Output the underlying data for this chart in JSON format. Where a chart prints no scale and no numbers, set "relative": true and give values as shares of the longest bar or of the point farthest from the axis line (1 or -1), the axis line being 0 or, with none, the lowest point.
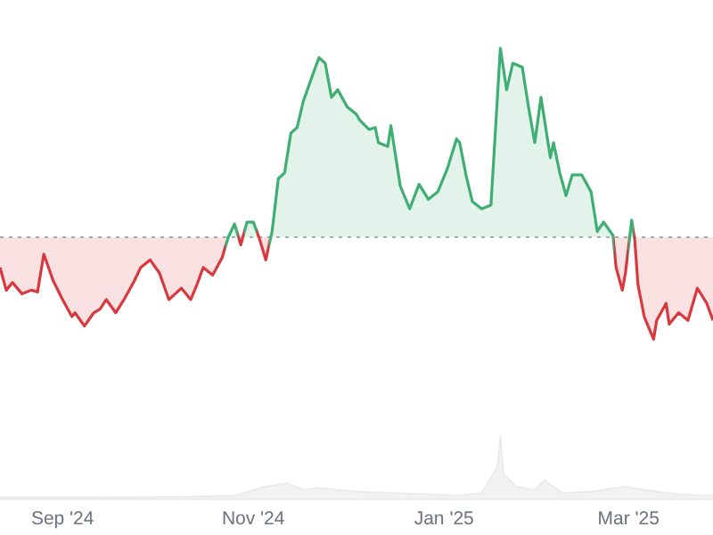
{
  "chart_data": [
    {
      "type": "area",
      "relative": true,
      "xlim": [
        "2024-08-12",
        "2025-03-28"
      ],
      "x": [
        "2024-08-12",
        "2024-08-14",
        "2024-08-16",
        "2024-08-19",
        "2024-08-22",
        "2024-08-24",
        "2024-08-26",
        "2024-08-29",
        "2024-09-01",
        "2024-09-04",
        "2024-09-05",
        "2024-09-08",
        "2024-09-11",
        "2024-09-13",
        "2024-09-15",
        "2024-09-18",
        "2024-09-21",
        "2024-09-24",
        "2024-09-26",
        "2024-09-29",
        "2024-10-02",
        "2024-10-05",
        "2024-10-07",
        "2024-10-09",
        "2024-10-12",
        "2024-10-14",
        "2024-10-16",
        "2024-10-19",
        "2024-10-22",
        "2024-10-24",
        "2024-10-26",
        "2024-10-28",
        "2024-10-30",
        "2024-11-01",
        "2024-11-03",
        "2024-11-05",
        "2024-11-07",
        "2024-11-09",
        "2024-11-11",
        "2024-11-13",
        "2024-11-15",
        "2024-11-17",
        "2024-11-20",
        "2024-11-22",
        "2024-11-24",
        "2024-11-26",
        "2024-11-28",
        "2024-12-01",
        "2024-12-04",
        "2024-12-05",
        "2024-12-08",
        "2024-12-10",
        "2024-12-11",
        "2024-12-14",
        "2024-12-15",
        "2024-12-18",
        "2024-12-21",
        "2024-12-24",
        "2024-12-27",
        "2024-12-30",
        "2025-01-02",
        "2025-01-05",
        "2025-01-06",
        "2025-01-08",
        "2025-01-10",
        "2025-01-13",
        "2025-01-16",
        "2025-01-19",
        "2025-01-21",
        "2025-01-23",
        "2025-01-26",
        "2025-01-28",
        "2025-01-30",
        "2025-02-01",
        "2025-02-04",
        "2025-02-05",
        "2025-02-07",
        "2025-02-09",
        "2025-02-11",
        "2025-02-14",
        "2025-02-17",
        "2025-02-19",
        "2025-02-21",
        "2025-02-24",
        "2025-02-25",
        "2025-02-27",
        "2025-02-28",
        "2025-03-02",
        "2025-03-03",
        "2025-03-04",
        "2025-03-06",
        "2025-03-09",
        "2025-03-10",
        "2025-03-13",
        "2025-03-14",
        "2025-03-17",
        "2025-03-20",
        "2025-03-23",
        "2025-03-26",
        "2025-03-28"
      ],
      "values": [
        -0.16,
        -0.28,
        -0.24,
        -0.3,
        -0.28,
        -0.29,
        -0.09,
        -0.23,
        -0.33,
        -0.42,
        -0.4,
        -0.47,
        -0.4,
        -0.38,
        -0.33,
        -0.4,
        -0.32,
        -0.23,
        -0.16,
        -0.12,
        -0.19,
        -0.33,
        -0.3,
        -0.27,
        -0.33,
        -0.25,
        -0.16,
        -0.2,
        -0.11,
        0,
        0.07,
        -0.04,
        0.08,
        0.08,
        -0.01,
        -0.12,
        0.03,
        0.31,
        0.34,
        0.55,
        0.58,
        0.72,
        0.86,
        0.95,
        0.92,
        0.74,
        0.78,
        0.69,
        0.65,
        0.62,
        0.57,
        0.58,
        0.5,
        0.48,
        0.59,
        0.27,
        0.15,
        0.28,
        0.2,
        0.24,
        0.36,
        0.52,
        0.5,
        0.33,
        0.19,
        0.15,
        0.17,
        1,
        0.78,
        0.92,
        0.9,
        0.69,
        0.5,
        0.74,
        0.42,
        0.5,
        0.34,
        0.22,
        0.33,
        0.33,
        0.24,
        0.03,
        0.08,
        0.01,
        -0.16,
        -0.28,
        -0.19,
        0.09,
        -0.02,
        -0.25,
        -0.42,
        -0.54,
        -0.44,
        -0.35,
        -0.46,
        -0.4,
        -0.44,
        -0.27,
        -0.35,
        -0.44
      ],
      "colors": [
        "#d8393f",
        "#d8393f",
        "#d8393f",
        "#d8393f",
        "#d8393f",
        "#d8393f",
        "#d8393f",
        "#d8393f",
        "#d8393f",
        "#d8393f",
        "#d8393f",
        "#d8393f",
        "#d8393f",
        "#d8393f",
        "#d8393f",
        "#d8393f",
        "#d8393f",
        "#d8393f",
        "#d8393f",
        "#d8393f",
        "#d8393f",
        "#d8393f",
        "#d8393f",
        "#d8393f",
        "#d8393f",
        "#d8393f",
        "#d8393f",
        "#d8393f",
        "#d8393f",
        "#3fae74",
        "#3fae74",
        "#d8393f",
        "#3fae74",
        "#3fae74",
        "#d8393f",
        "#d8393f",
        "#3fae74",
        "#3fae74",
        "#3fae74",
        "#3fae74",
        "#3fae74",
        "#3fae74",
        "#3fae74",
        "#3fae74",
        "#3fae74",
        "#3fae74",
        "#3fae74",
        "#3fae74",
        "#3fae74",
        "#3fae74",
        "#3fae74",
        "#3fae74",
        "#3fae74",
        "#3fae74",
        "#3fae74",
        "#3fae74",
        "#3fae74",
        "#3fae74",
        "#3fae74",
        "#3fae74",
        "#3fae74",
        "#3fae74",
        "#3fae74",
        "#3fae74",
        "#3fae74",
        "#3fae74",
        "#3fae74",
        "#3fae74",
        "#3fae74",
        "#3fae74",
        "#3fae74",
        "#3fae74",
        "#3fae74",
        "#3fae74",
        "#3fae74",
        "#3fae74",
        "#3fae74",
        "#3fae74",
        "#3fae74",
        "#3fae74",
        "#3fae74",
        "#3fae74",
        "#3fae74",
        "#3fae74",
        "#d8393f",
        "#d8393f",
        "#d8393f",
        "#3fae74",
        "#d8393f",
        "#d8393f",
        "#d8393f",
        "#d8393f",
        "#d8393f",
        "#d8393f",
        "#d8393f",
        "#d8393f",
        "#d8393f",
        "#d8393f",
        "#d8393f",
        "#d8393f"
      ],
      "ref_lines": [
        {
          "axis": "y",
          "value": 0,
          "color": "#b0b0b0",
          "line_style": "dotted"
        }
      ]
    },
    {
      "type": "area",
      "relative": true,
      "xlim": [
        "2024-08-12",
        "2025-03-28"
      ],
      "xticks": [
        {
          "value": "2024-09-01",
          "label": "Sep '24"
        },
        {
          "value": "2024-11-01",
          "label": "Nov '24"
        },
        {
          "value": "2025-01-01",
          "label": "Jan '25"
        },
        {
          "value": "2025-03-01",
          "label": "Mar '25"
        }
      ],
      "x": [
        "2024-08-12",
        "2024-09-11",
        "2024-10-09",
        "2024-10-26",
        "2024-11-05",
        "2024-11-12",
        "2024-11-17",
        "2024-11-22",
        "2024-12-04",
        "2024-12-15",
        "2024-12-27",
        "2025-01-05",
        "2025-01-13",
        "2025-01-18",
        "2025-01-19",
        "2025-01-20",
        "2025-01-24",
        "2025-01-30",
        "2025-02-02",
        "2025-02-08",
        "2025-02-17",
        "2025-02-28",
        "2025-03-06",
        "2025-03-17",
        "2025-03-28"
      ],
      "values": [
        0.03,
        0.03,
        0.04,
        0.06,
        0.2,
        0.25,
        0.15,
        0.18,
        0.12,
        0.1,
        0.08,
        0.06,
        0.1,
        0.5,
        1,
        0.4,
        0.2,
        0.15,
        0.3,
        0.1,
        0.12,
        0.2,
        0.15,
        0.08,
        0.06
      ],
      "color": "#e6e6e6"
    }
  ]
}
